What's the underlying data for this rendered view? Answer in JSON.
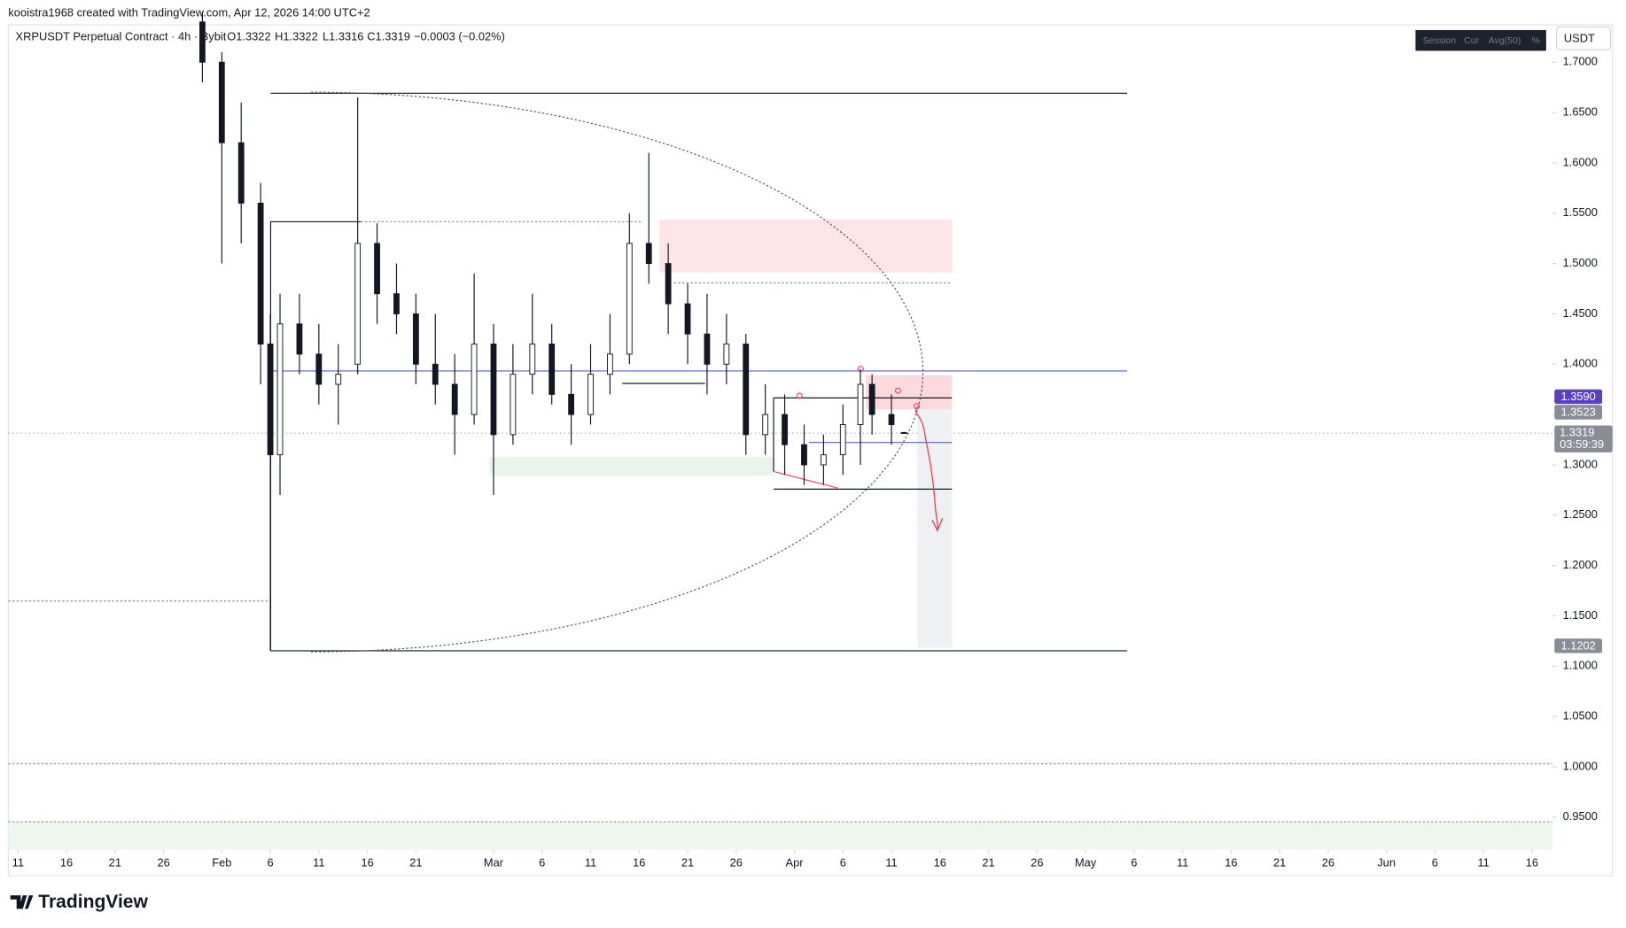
{
  "header": {
    "attribution": "kooistra1968 created with TradingView.com, Apr 12, 2026 14:00 UTC+2"
  },
  "legend": {
    "symbol": "XRPUSDT Perpetual Contract · 4h · Bybit",
    "open": "O1.3322",
    "high": "H1.3322",
    "low": "L1.3316",
    "close": "C1.3319",
    "change": "−0.0003 (−0.02%)"
  },
  "toolbar": {
    "buttons": [
      "Session",
      "Cur",
      "Avg(50)",
      "%"
    ],
    "currency": "USDT"
  },
  "footer": {
    "logo": "TradingView"
  },
  "chart_data": {
    "type": "candlestick",
    "x": [
      30,
      32,
      34,
      36,
      37,
      38,
      40,
      42,
      44,
      46,
      48,
      50,
      52,
      54,
      56,
      58,
      60,
      62,
      64,
      66,
      68,
      70,
      72,
      74,
      76,
      78,
      80,
      82,
      84,
      86,
      88,
      90,
      92,
      94,
      96,
      97.8,
      99,
      101,
      102.3
    ],
    "open": [
      1.74,
      1.7,
      1.62,
      1.56,
      1.42,
      1.31,
      1.44,
      1.41,
      1.38,
      1.4,
      1.52,
      1.47,
      1.45,
      1.4,
      1.38,
      1.35,
      1.42,
      1.33,
      1.39,
      1.42,
      1.37,
      1.35,
      1.39,
      1.41,
      1.52,
      1.5,
      1.46,
      1.43,
      1.4,
      1.42,
      1.33,
      1.35,
      1.32,
      1.3,
      1.31,
      1.34,
      1.38,
      1.35,
      1.3322
    ],
    "high": [
      1.75,
      1.71,
      1.66,
      1.58,
      1.45,
      1.47,
      1.47,
      1.44,
      1.42,
      1.665,
      1.54,
      1.5,
      1.47,
      1.45,
      1.41,
      1.49,
      1.44,
      1.42,
      1.47,
      1.44,
      1.4,
      1.42,
      1.45,
      1.55,
      1.61,
      1.52,
      1.48,
      1.47,
      1.45,
      1.43,
      1.38,
      1.37,
      1.34,
      1.33,
      1.36,
      1.395,
      1.39,
      1.37,
      1.3322
    ],
    "low": [
      1.68,
      1.5,
      1.52,
      1.38,
      1.115,
      1.27,
      1.39,
      1.36,
      1.34,
      1.39,
      1.44,
      1.43,
      1.38,
      1.36,
      1.31,
      1.34,
      1.27,
      1.32,
      1.37,
      1.36,
      1.32,
      1.34,
      1.37,
      1.4,
      1.48,
      1.43,
      1.4,
      1.37,
      1.38,
      1.31,
      1.31,
      1.29,
      1.28,
      1.28,
      1.29,
      1.3,
      1.33,
      1.32,
      1.3316
    ],
    "close": [
      1.7,
      1.62,
      1.56,
      1.42,
      1.31,
      1.44,
      1.41,
      1.38,
      1.39,
      1.52,
      1.47,
      1.45,
      1.4,
      1.38,
      1.35,
      1.42,
      1.33,
      1.39,
      1.42,
      1.37,
      1.35,
      1.39,
      1.41,
      1.52,
      1.5,
      1.46,
      1.43,
      1.4,
      1.42,
      1.33,
      1.35,
      1.32,
      1.3,
      1.31,
      1.34,
      1.38,
      1.35,
      1.34,
      1.3319
    ],
    "up_color": "#ffffff",
    "down_color": "#131722",
    "xlim": [
      10,
      169.1
    ],
    "xticks": [
      11,
      16,
      21,
      26,
      {
        "value": 32,
        "label": "Feb"
      },
      {
        "value": 37,
        "label": "6"
      },
      {
        "value": 42,
        "label": "11"
      },
      {
        "value": 47,
        "label": "16"
      },
      {
        "value": 52,
        "label": "21"
      },
      {
        "value": 60,
        "label": "Mar"
      },
      {
        "value": 65,
        "label": "6"
      },
      {
        "value": 70,
        "label": "11"
      },
      {
        "value": 75,
        "label": "16"
      },
      {
        "value": 80,
        "label": "21"
      },
      {
        "value": 85,
        "label": "26"
      },
      {
        "value": 91,
        "label": "Apr"
      },
      {
        "value": 96,
        "label": "6"
      },
      {
        "value": 101,
        "label": "11"
      },
      {
        "value": 106,
        "label": "16"
      },
      {
        "value": 111,
        "label": "21"
      },
      {
        "value": 116,
        "label": "26"
      },
      {
        "value": 121,
        "label": "May"
      },
      {
        "value": 126,
        "label": "6"
      },
      {
        "value": 131,
        "label": "11"
      },
      {
        "value": 136,
        "label": "16"
      },
      {
        "value": 141,
        "label": "21"
      },
      {
        "value": 146,
        "label": "26"
      },
      {
        "value": 152,
        "label": "Jun"
      },
      {
        "value": 157,
        "label": "6"
      },
      {
        "value": 162,
        "label": "11"
      },
      {
        "value": 167,
        "label": "16"
      }
    ],
    "ylim": [
      0.9176,
      1.7371
    ],
    "yticks": [
      {
        "value": 0.95,
        "label": "0.9500"
      },
      {
        "value": 1.0,
        "label": "1.0000"
      },
      {
        "value": 1.05,
        "label": "1.0500"
      },
      {
        "value": 1.1,
        "label": "1.1000"
      },
      {
        "value": 1.15,
        "label": "1.1500"
      },
      {
        "value": 1.2,
        "label": "1.2000"
      },
      {
        "value": 1.25,
        "label": "1.2500"
      },
      {
        "value": 1.3,
        "label": "1.3000"
      },
      {
        "value": 1.35,
        "label": "1.3500"
      },
      {
        "value": 1.4,
        "label": "1.4000"
      },
      {
        "value": 1.45,
        "label": "1.4500"
      },
      {
        "value": 1.5,
        "label": "1.5000"
      },
      {
        "value": 1.55,
        "label": "1.5500"
      },
      {
        "value": 1.6,
        "label": "1.6000"
      },
      {
        "value": 1.65,
        "label": "1.6500"
      },
      {
        "value": 1.7,
        "label": "1.7000"
      }
    ],
    "price_labels": [
      {
        "value": {
          "value": 1.359,
          "label": "1.3590"
        },
        "color": "#5b3fc4"
      },
      {
        "value": 1.3523,
        "color": "#8a8d96"
      },
      {
        "value": 1.1202,
        "color": "#8a8d96"
      }
    ],
    "last_price": {
      "value": 1.3319,
      "countdown": "03:59:39",
      "color": "#8a8d96"
    }
  }
}
